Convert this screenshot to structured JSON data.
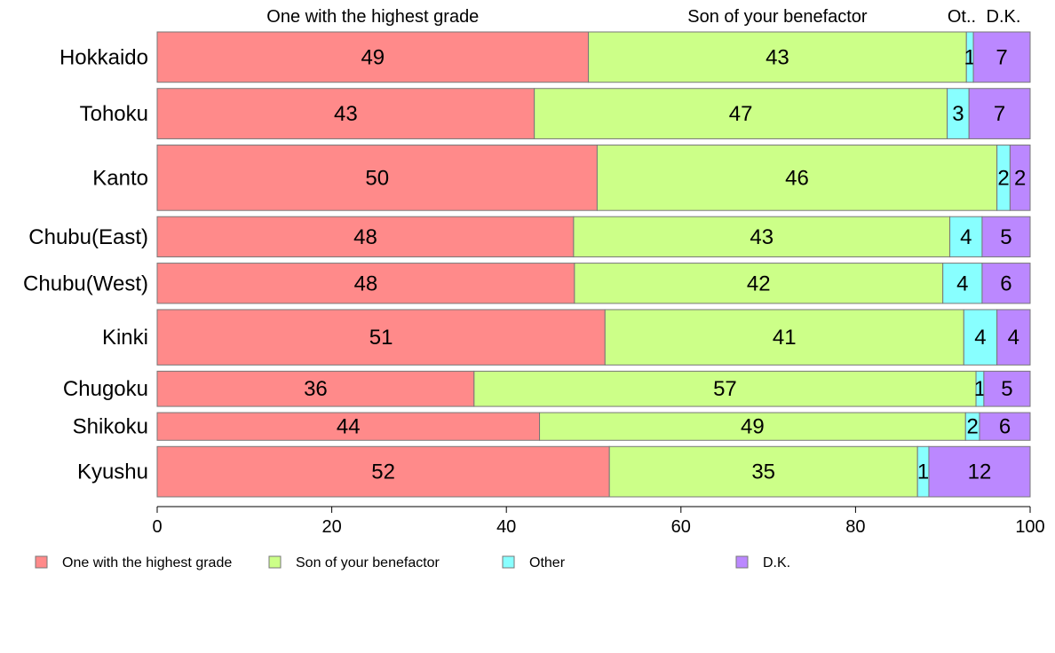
{
  "chart_data": {
    "type": "bar",
    "orientation": "horizontal",
    "stacked": true,
    "categories": [
      "Hokkaido",
      "Tohoku",
      "Kanto",
      "Chubu(East)",
      "Chubu(West)",
      "Kinki",
      "Chugoku",
      "Shikoku",
      "Kyushu"
    ],
    "series": [
      {
        "name": "One with the highest grade",
        "color": "#ff8a8a",
        "values": [
          49.4,
          43.2,
          50.4,
          47.7,
          47.8,
          51.3,
          36.3,
          43.8,
          51.8
        ]
      },
      {
        "name": "Son of your benefactor",
        "color": "#ccff88",
        "values": [
          43.3,
          47.3,
          45.8,
          43.1,
          42.2,
          41.1,
          57.5,
          48.8,
          35.3
        ]
      },
      {
        "name": "Other",
        "color": "#88ffff",
        "values": [
          0.8,
          2.5,
          1.5,
          3.7,
          4.5,
          3.8,
          0.9,
          1.6,
          1.3
        ]
      },
      {
        "name": "D.K.",
        "color": "#bb88ff",
        "values": [
          6.5,
          7.0,
          2.3,
          5.5,
          5.5,
          3.8,
          5.3,
          5.8,
          11.6
        ]
      }
    ],
    "labels": [
      [
        49,
        43,
        1,
        7
      ],
      [
        43,
        47,
        3,
        7
      ],
      [
        50,
        46,
        2,
        2
      ],
      [
        48,
        43,
        4,
        5
      ],
      [
        48,
        42,
        4,
        6
      ],
      [
        51,
        41,
        4,
        4
      ],
      [
        36,
        57,
        1,
        5
      ],
      [
        44,
        49,
        2,
        6
      ],
      [
        52,
        35,
        1,
        12
      ]
    ],
    "row_weights": [
      1,
      1,
      1.3,
      0.8,
      0.8,
      1.1,
      0.7,
      0.55,
      1.0
    ],
    "column_headers": [
      "One with the highest grade",
      "Son of your benefactor",
      "Ot..",
      "D.K."
    ],
    "xlim": [
      0,
      100
    ],
    "xticks": [
      0,
      20,
      40,
      60,
      80,
      100
    ],
    "grid": false,
    "legend_position": "bottom"
  }
}
